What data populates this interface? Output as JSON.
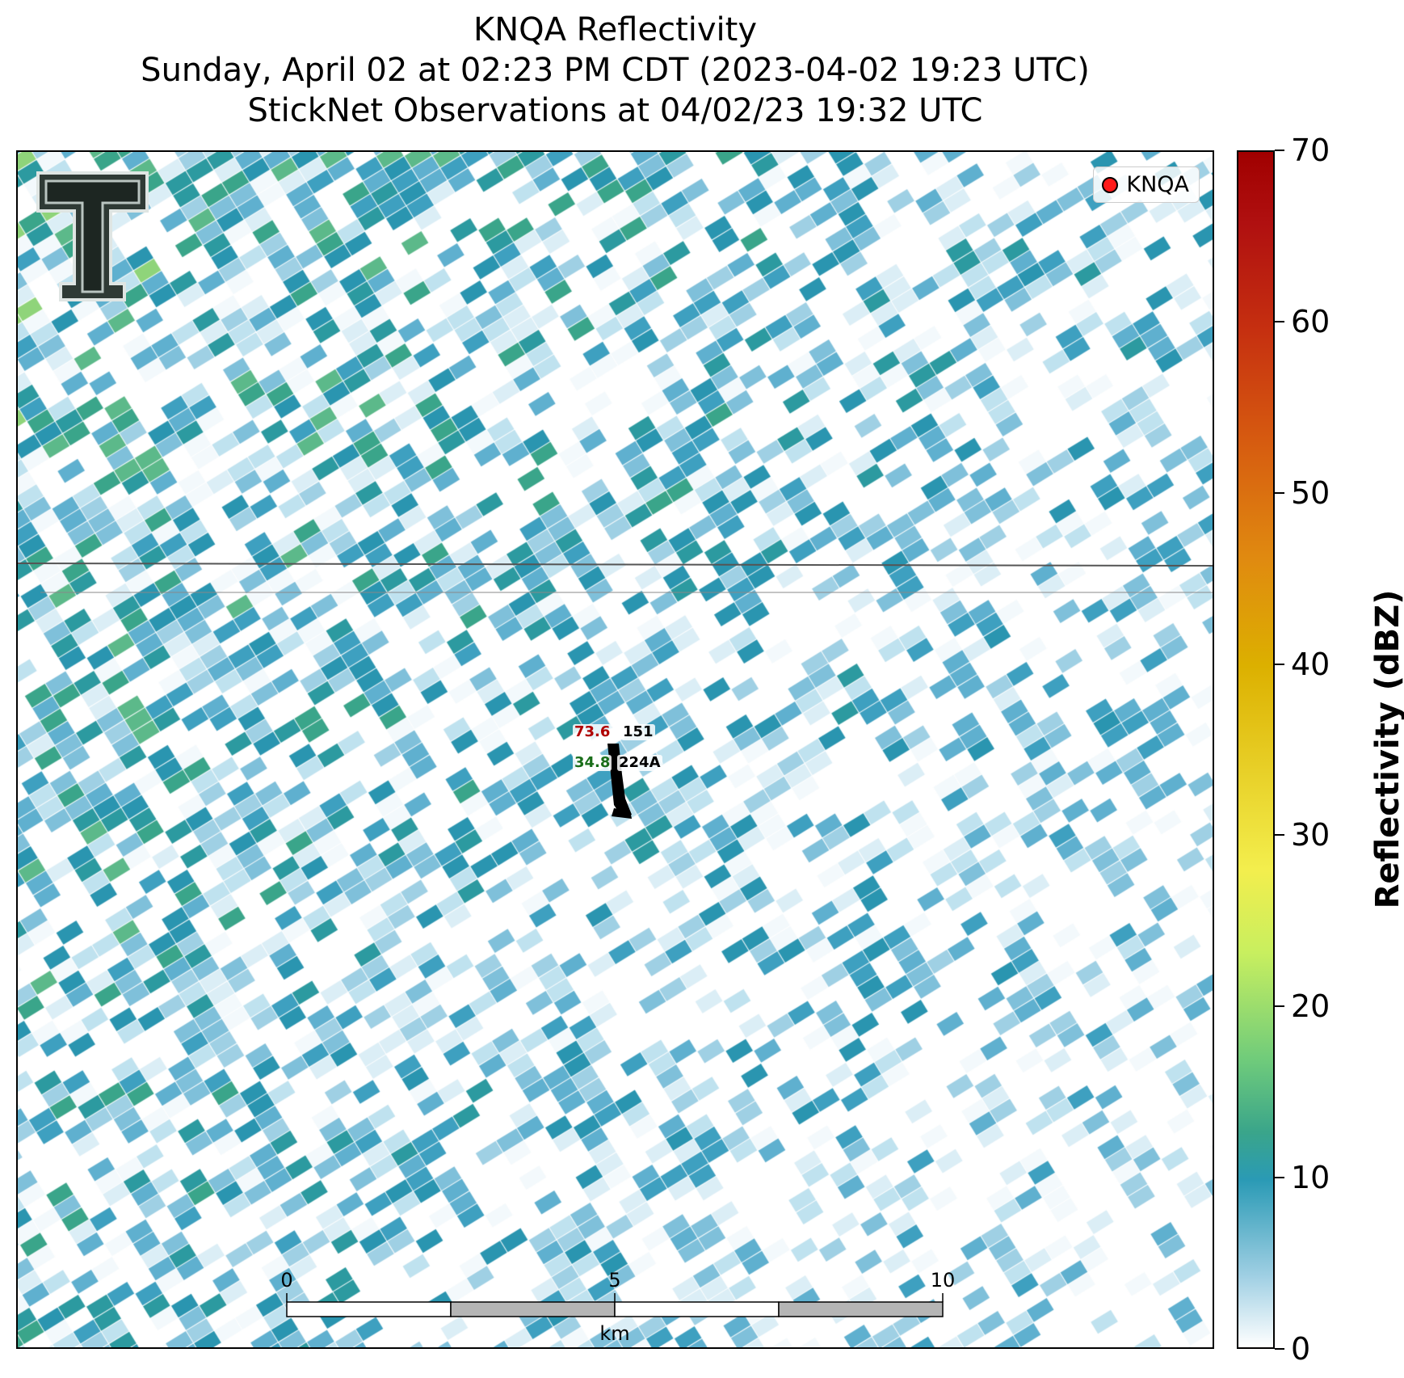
{
  "title": {
    "line1": "KNQA Reflectivity",
    "line2": "Sunday, April 02 at 02:23 PM CDT (2023-04-02 19:23 UTC)",
    "line3": "StickNet Observations at 04/02/23 19:32 UTC"
  },
  "legend": {
    "label": "KNQA",
    "marker_color": "#ff1a1a"
  },
  "observation": {
    "temperature": "73.6",
    "pressure": "151",
    "dewpoint": "34.8",
    "station_id": "224A",
    "temperature_color": "#b00000",
    "dewpoint_color": "#1a6e1a"
  },
  "scale_bar": {
    "ticks": [
      "0",
      "5",
      "10"
    ],
    "unit": "km"
  },
  "colorbar": {
    "title": "Reflectivity (dBZ)",
    "ticks": [
      "0",
      "10",
      "20",
      "30",
      "40",
      "50",
      "60",
      "70"
    ],
    "range": [
      0,
      70
    ]
  },
  "logo": {
    "name": "Texas Tech double-T logo"
  }
}
